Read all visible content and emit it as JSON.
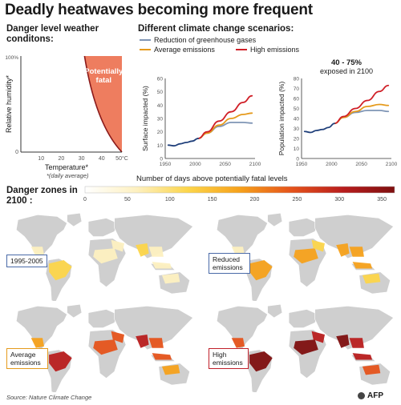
{
  "title": "Deadly heatwaves becoming more frequent",
  "danger_panel": {
    "heading": "Danger level weather conditons:",
    "ylabel": "Relative humidity*",
    "xlabel": "Temperature*",
    "xlabel_note": "*(daily average)",
    "region_label": "Potentially fatal",
    "x_ticks": [
      "10",
      "20",
      "30",
      "40",
      "50°C"
    ],
    "y_ticks": [
      "100%",
      "0"
    ],
    "region_color": "#ee7d5f",
    "boundary_color": "#8b1a1a"
  },
  "scenarios": {
    "heading": "Different climate change scenarios:",
    "legend": [
      {
        "label": "Reduction of greenhouse gases",
        "color": "#7f95b5"
      },
      {
        "label": "Average emissions",
        "color": "#e59a1c"
      },
      {
        "label": "High emissions",
        "color": "#d01f27"
      }
    ],
    "annotation_main": "40 - 75%",
    "annotation_sub": "exposed in 2100"
  },
  "chart_data": [
    {
      "type": "line",
      "ylabel": "Surface impacted (%)",
      "xlim": [
        1950,
        2100
      ],
      "ylim": [
        0,
        60
      ],
      "x_ticks": [
        1950,
        2000,
        2050,
        2100
      ],
      "y_ticks": [
        0,
        10,
        20,
        30,
        40,
        50,
        60
      ],
      "series": [
        {
          "name": "Reduction of greenhouse gases",
          "color": "#7f95b5",
          "x": [
            2005,
            2020,
            2040,
            2060,
            2080,
            2095
          ],
          "y": [
            15,
            19,
            24,
            27,
            27,
            26.5
          ]
        },
        {
          "name": "Average emissions",
          "color": "#e59a1c",
          "x": [
            2005,
            2020,
            2040,
            2060,
            2080,
            2095
          ],
          "y": [
            15,
            19,
            25,
            30,
            33,
            34
          ]
        },
        {
          "name": "High emissions",
          "color": "#d01f27",
          "x": [
            2005,
            2020,
            2040,
            2060,
            2080,
            2095
          ],
          "y": [
            15,
            20,
            28,
            35,
            42,
            47
          ]
        },
        {
          "name": "Historical",
          "color": "#1f3f7a",
          "x": [
            1955,
            1965,
            1975,
            1985,
            1995,
            2005
          ],
          "y": [
            10,
            9.5,
            11,
            12,
            13,
            15
          ]
        }
      ]
    },
    {
      "type": "line",
      "ylabel": "Population impacted (%)",
      "xlim": [
        1950,
        2100
      ],
      "ylim": [
        0,
        80
      ],
      "x_ticks": [
        1950,
        2000,
        2050,
        2100
      ],
      "y_ticks": [
        0,
        10,
        20,
        30,
        40,
        50,
        60,
        70,
        80
      ],
      "series": [
        {
          "name": "Reduction of greenhouse gases",
          "color": "#7f95b5",
          "x": [
            2005,
            2020,
            2040,
            2060,
            2080,
            2095
          ],
          "y": [
            35,
            41,
            46,
            48,
            48,
            47
          ]
        },
        {
          "name": "Average emissions",
          "color": "#e59a1c",
          "x": [
            2005,
            2020,
            2040,
            2060,
            2080,
            2095
          ],
          "y": [
            35,
            41,
            47,
            52,
            54,
            53
          ]
        },
        {
          "name": "High emissions",
          "color": "#d01f27",
          "x": [
            2005,
            2020,
            2040,
            2060,
            2080,
            2095
          ],
          "y": [
            35,
            42,
            50,
            58,
            67,
            73
          ]
        },
        {
          "name": "Historical",
          "color": "#1f3f7a",
          "x": [
            1955,
            1965,
            1975,
            1985,
            1995,
            2005
          ],
          "y": [
            27,
            26,
            28,
            29,
            31,
            35
          ]
        }
      ]
    },
    {
      "type": "heatmap",
      "title": "Number of days above potentially fatal levels",
      "scale_ticks": [
        0,
        50,
        100,
        150,
        200,
        250,
        300,
        350
      ],
      "scale_range": [
        0,
        365
      ],
      "colors": [
        "#ffffff",
        "#fdf0c0",
        "#fcd54a",
        "#f6a11b",
        "#e5531b",
        "#b81d1d",
        "#7e0f0f"
      ]
    }
  ],
  "zones": {
    "heading": "Danger zones in 2100 :",
    "maps": [
      {
        "label": "1995-2005",
        "border_color": "#4a6aa8",
        "intensity": 0
      },
      {
        "label": "Reduced emissions",
        "border_color": "#4a6aa8",
        "intensity": 1
      },
      {
        "label": "Average emissions",
        "border_color": "#e59a1c",
        "intensity": 2
      },
      {
        "label": "High emissions",
        "border_color": "#c0202a",
        "intensity": 3
      }
    ]
  },
  "source": "Source: Nature Climate Change",
  "credit": "AFP"
}
